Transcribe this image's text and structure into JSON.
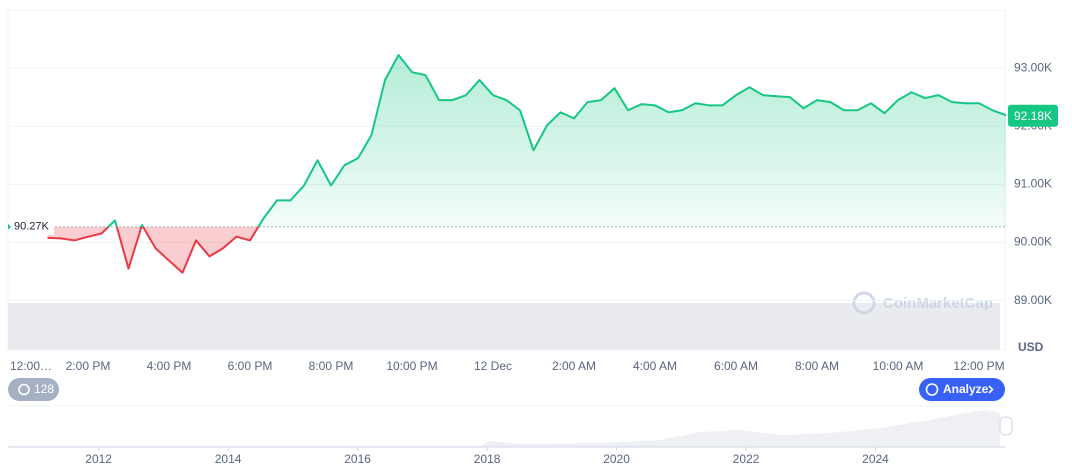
{
  "chart_data": {
    "type": "line",
    "categories": [
      "12:00…",
      null,
      null,
      "2:00 PM",
      null,
      null,
      null,
      null,
      null,
      "4:00 PM",
      null,
      null,
      null,
      null,
      null,
      "6:00 PM",
      null,
      null,
      null,
      null,
      null,
      "8:00 PM",
      null,
      null,
      null,
      null,
      null,
      "10:00 PM",
      null,
      null,
      null,
      null,
      null,
      "12 Dec",
      null,
      null,
      null,
      null,
      null,
      "2:00 AM",
      null,
      null,
      null,
      null,
      null,
      "4:00 AM",
      null,
      null,
      null,
      null,
      null,
      "6:00 AM",
      null,
      null,
      null,
      null,
      null,
      "8:00 AM",
      null,
      null,
      null,
      null,
      null,
      "10:00 AM",
      null,
      null,
      null,
      null,
      null,
      "12:00 PM",
      null,
      null
    ],
    "values": [
      90080,
      90070,
      90035,
      90100,
      90155,
      90380,
      89550,
      90300,
      89900,
      89690,
      89480,
      90035,
      89760,
      89900,
      90100,
      90035,
      90415,
      90725,
      90725,
      90980,
      91415,
      90980,
      91330,
      91450,
      91850,
      92795,
      93225,
      92930,
      92880,
      92450,
      92450,
      92535,
      92795,
      92535,
      92450,
      92275,
      91585,
      92015,
      92240,
      92135,
      92415,
      92450,
      92655,
      92275,
      92380,
      92360,
      92240,
      92275,
      92395,
      92360,
      92360,
      92535,
      92670,
      92535,
      92515,
      92500,
      92310,
      92450,
      92415,
      92275,
      92275,
      92395,
      92225,
      92450,
      92585,
      92485,
      92535,
      92415,
      92395,
      92395,
      92275,
      92190
    ],
    "color": "#16c784",
    "down_color": "#ea3943",
    "baseline": {
      "value": 90270,
      "label": "90.27K"
    },
    "last_price": {
      "value": 92180,
      "label": "92.18K"
    },
    "currency": "USD",
    "ylim": [
      88150,
      94000
    ],
    "yticks": [
      {
        "value": 89000,
        "label": "89.00K"
      },
      {
        "value": 90000,
        "label": "90.00K"
      },
      {
        "value": 91000,
        "label": "91.00K"
      },
      {
        "value": 92000,
        "label": "92.00K"
      },
      {
        "value": 93000,
        "label": "93.00K"
      }
    ],
    "grid": true,
    "watermark": "CoinMarketCap",
    "history_count": 128,
    "analyze_button": "Analyze",
    "navigator": {
      "xlim": [
        2010.6,
        2026
      ],
      "xticks": [
        2012,
        2014,
        2016,
        2018,
        2020,
        2022,
        2024
      ]
    }
  }
}
